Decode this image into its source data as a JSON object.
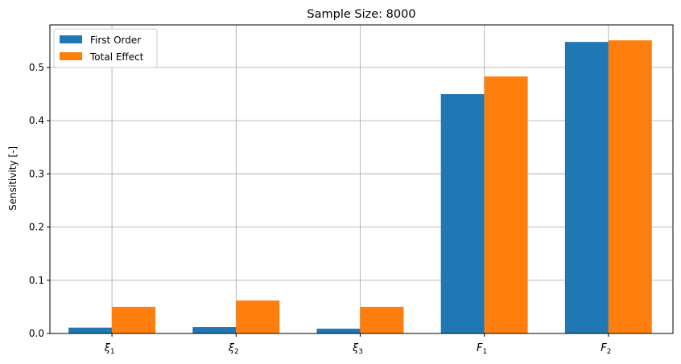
{
  "chart_data": {
    "type": "bar",
    "title": "Sample Size: 8000",
    "xlabel": "",
    "ylabel": "Sensitivity [-]",
    "categories": [
      {
        "base": "ξ",
        "sub": "1"
      },
      {
        "base": "ξ",
        "sub": "2"
      },
      {
        "base": "ξ",
        "sub": "3"
      },
      {
        "base": "F",
        "sub": "1"
      },
      {
        "base": "F",
        "sub": "2"
      }
    ],
    "series": [
      {
        "name": "First Order",
        "color": "#1f77b4",
        "values": [
          0.011,
          0.012,
          0.009,
          0.45,
          0.548
        ]
      },
      {
        "name": "Total Effect",
        "color": "#ff7f0e",
        "values": [
          0.05,
          0.062,
          0.05,
          0.483,
          0.551
        ]
      }
    ],
    "ylim": [
      0,
      0.58
    ],
    "yticks": [
      0.0,
      0.1,
      0.2,
      0.3,
      0.4,
      0.5
    ],
    "ytick_labels": [
      "0.0",
      "0.1",
      "0.2",
      "0.3",
      "0.4",
      "0.5"
    ],
    "grid": true,
    "legend_position": "top-left"
  }
}
